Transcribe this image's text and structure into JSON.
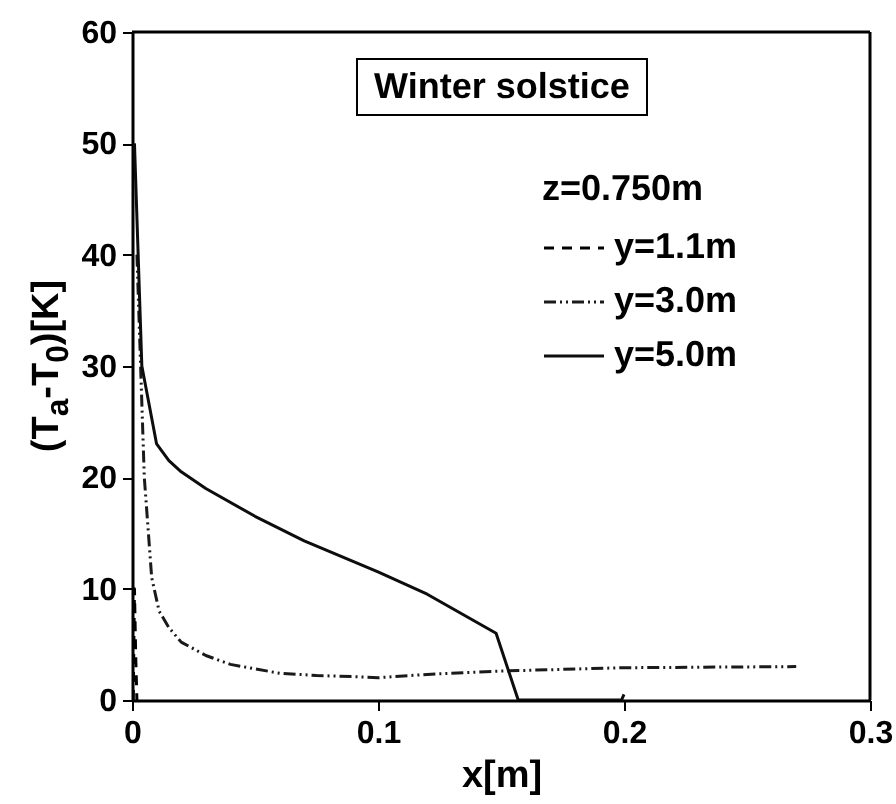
{
  "chart_data": {
    "type": "line",
    "xlabel": "x[m]",
    "ylabel": "(T$_{a}$-T$_{0}$)[K]",
    "legend_title": "z=0.750m",
    "legend": "top right",
    "annotations": [
      "Winter solstice"
    ],
    "xlim": [
      0,
      0.3
    ],
    "xticks": [
      0,
      0.1,
      0.2,
      0.3
    ],
    "ylim": [
      0,
      60
    ],
    "yticks": [
      0,
      10,
      20,
      30,
      40,
      50,
      60
    ],
    "grid": false,
    "series": [
      {
        "name": "y=1.1m",
        "color": "#000000",
        "line_style": "dashed",
        "x": [
          0.0005,
          0.001,
          0.0015,
          0.002
        ],
        "values": [
          0,
          10,
          4,
          0
        ]
      },
      {
        "name": "y=3.0m",
        "color": "#1a1a1a",
        "line_style": "dotted",
        "x": [
          0.002,
          0.005,
          0.008,
          0.011,
          0.015,
          0.02,
          0.03,
          0.04,
          0.05,
          0.06,
          0.075,
          0.09,
          0.1,
          0.12,
          0.15,
          0.2,
          0.27
        ],
        "values": [
          40,
          20,
          11,
          8,
          6.5,
          5.2,
          4,
          3.2,
          2.8,
          2.4,
          2.2,
          2.1,
          2,
          2.3,
          2.6,
          2.9,
          3
        ]
      },
      {
        "name": "y=5.0m",
        "color": "#0d0d0d",
        "line_style": "solid",
        "x": [
          0.001,
          0.004,
          0.01,
          0.015,
          0.02,
          0.03,
          0.05,
          0.07,
          0.1,
          0.12,
          0.148,
          0.157,
          0.16,
          0.199,
          0.2
        ],
        "values": [
          50,
          30,
          23,
          21.5,
          20.5,
          19,
          16.5,
          14.3,
          11.5,
          9.5,
          6,
          0,
          0,
          0,
          0.5
        ]
      }
    ]
  }
}
